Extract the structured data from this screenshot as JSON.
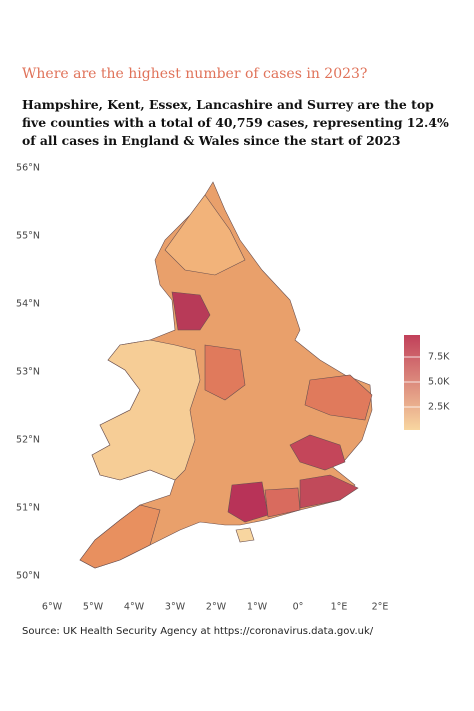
{
  "chart_data": {
    "type": "choropleth",
    "title": "Where are the highest number of cases in 2023?",
    "subtitle": "Hampshire, Kent, Essex, Lancashire and Surrey are the top five counties with a total of 40,759 cases, representing 12.4% of all cases in England & Wales since the start of 2023",
    "source": "Source: UK Health Security Agency at https://coronavirus.data.gov.uk/",
    "xlim": [
      -6,
      2
    ],
    "xticks": [
      {
        "value": -6,
        "label": "6°W"
      },
      {
        "value": -5,
        "label": "5°W"
      },
      {
        "value": -4,
        "label": "4°W"
      },
      {
        "value": -3,
        "label": "3°W"
      },
      {
        "value": -2,
        "label": "2°W"
      },
      {
        "value": -1,
        "label": "1°W"
      },
      {
        "value": 0,
        "label": "0°"
      },
      {
        "value": 1,
        "label": "1°E"
      },
      {
        "value": 2,
        "label": "2°E"
      }
    ],
    "ylim": [
      50,
      56
    ],
    "yticks": [
      {
        "value": 50,
        "label": "50°N"
      },
      {
        "value": 51,
        "label": "51°N"
      },
      {
        "value": 52,
        "label": "52°N"
      },
      {
        "value": 53,
        "label": "53°N"
      },
      {
        "value": 54,
        "label": "54°N"
      },
      {
        "value": 55,
        "label": "55°N"
      },
      {
        "value": 56,
        "label": "56°N"
      }
    ],
    "colorbar": {
      "clim": [
        200,
        9700
      ],
      "colors": [
        "#f8d6a0",
        "#c1405a"
      ],
      "ticks": [
        {
          "value": 2500,
          "label": "2.5K"
        },
        {
          "value": 5000,
          "label": "5.0K"
        },
        {
          "value": 7500,
          "label": "7.5K"
        }
      ]
    }
  }
}
